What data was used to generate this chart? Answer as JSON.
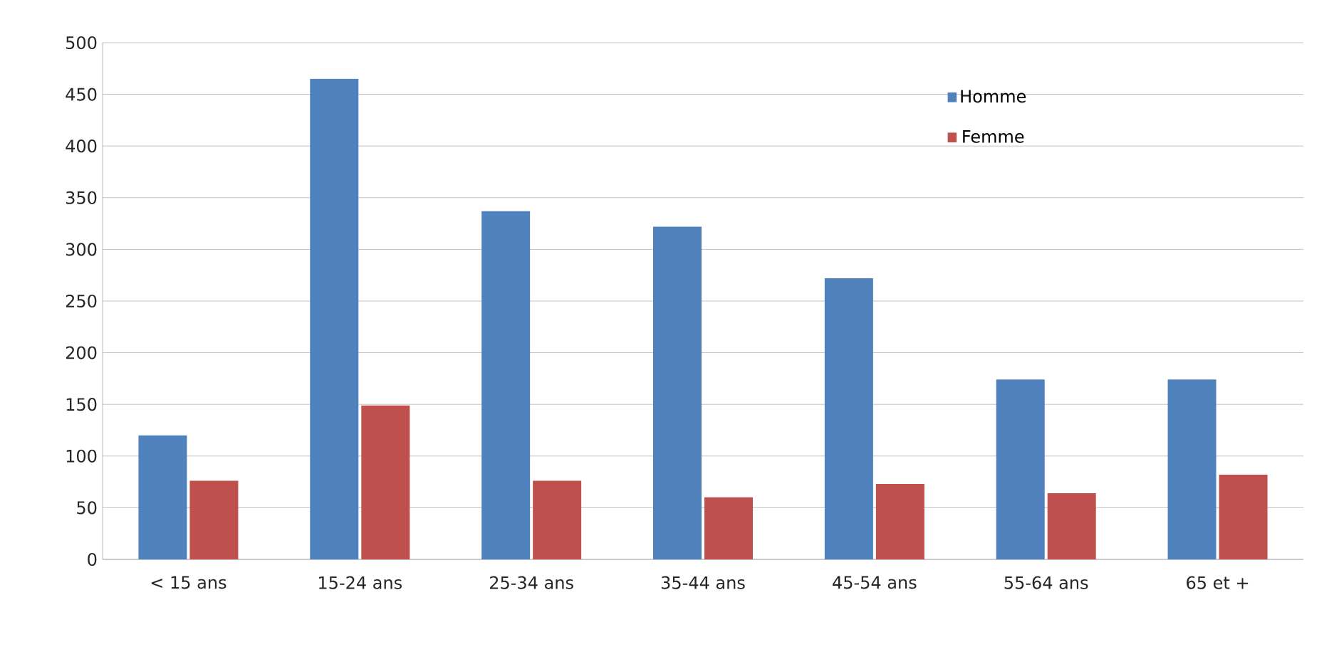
{
  "chart_data": {
    "type": "bar",
    "categories": [
      "< 15 ans",
      "15-24 ans",
      "25-34 ans",
      "35-44 ans",
      "45-54 ans",
      "55-64 ans",
      "65 et +"
    ],
    "series": [
      {
        "name": "Homme",
        "color": "#4f81bd",
        "values": [
          120,
          465,
          337,
          322,
          272,
          174,
          174
        ]
      },
      {
        "name": "Femme",
        "color": "#c0504d",
        "values": [
          76,
          149,
          76,
          60,
          73,
          64,
          82
        ]
      }
    ],
    "ylim": [
      0,
      500
    ],
    "yticks": [
      0,
      50,
      100,
      150,
      200,
      250,
      300,
      350,
      400,
      450,
      500
    ],
    "grid": "y",
    "legend": "top right"
  }
}
